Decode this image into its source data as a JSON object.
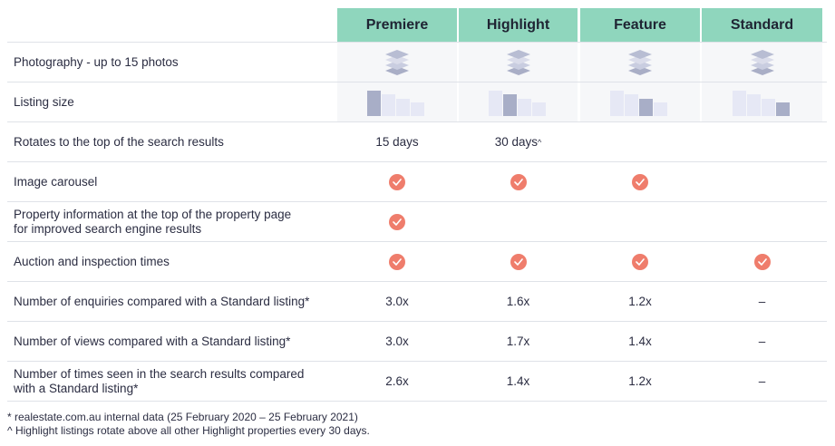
{
  "columns": [
    "Premiere",
    "Highlight",
    "Feature",
    "Standard"
  ],
  "rows": {
    "photography": {
      "label": "Photography - up to 15 photos",
      "icon": "photo-layers-icon"
    },
    "listing_size": {
      "label": "Listing size",
      "icon": "size-bars-icon"
    },
    "rotates": {
      "label": "Rotates to the top of the search results",
      "premiere": "15 days",
      "highlight": "30 days",
      "highlight_mark": "^"
    },
    "carousel": {
      "label": "Image carousel"
    },
    "property_info": {
      "label_line1": "Property information at the top of the property page",
      "label_line2": "for improved search engine results"
    },
    "auction": {
      "label": "Auction and inspection times"
    },
    "enquiries": {
      "label": "Number of enquiries compared with a Standard listing*",
      "values": [
        "3.0x",
        "1.6x",
        "1.2x",
        "–"
      ]
    },
    "views": {
      "label": "Number of views compared with a Standard listing*",
      "values": [
        "3.0x",
        "1.7x",
        "1.4x",
        "–"
      ]
    },
    "seen": {
      "label_line1": "Number of times seen in the search results compared",
      "label_line2": "with a Standard listing*",
      "values": [
        "2.6x",
        "1.4x",
        "1.2x",
        "–"
      ]
    }
  },
  "footnotes": {
    "line1": "* realestate.com.au internal data (25 February 2020 – 25 February 2021)",
    "line2": "^ Highlight listings rotate above all other Highlight properties every 30 days."
  },
  "colors": {
    "header": "#8fd6bd",
    "check": "#ef7d6c",
    "highlight_bar": "#a8aec7",
    "light_bar": "#e6e8f5",
    "shade": "#f6f7f9"
  }
}
